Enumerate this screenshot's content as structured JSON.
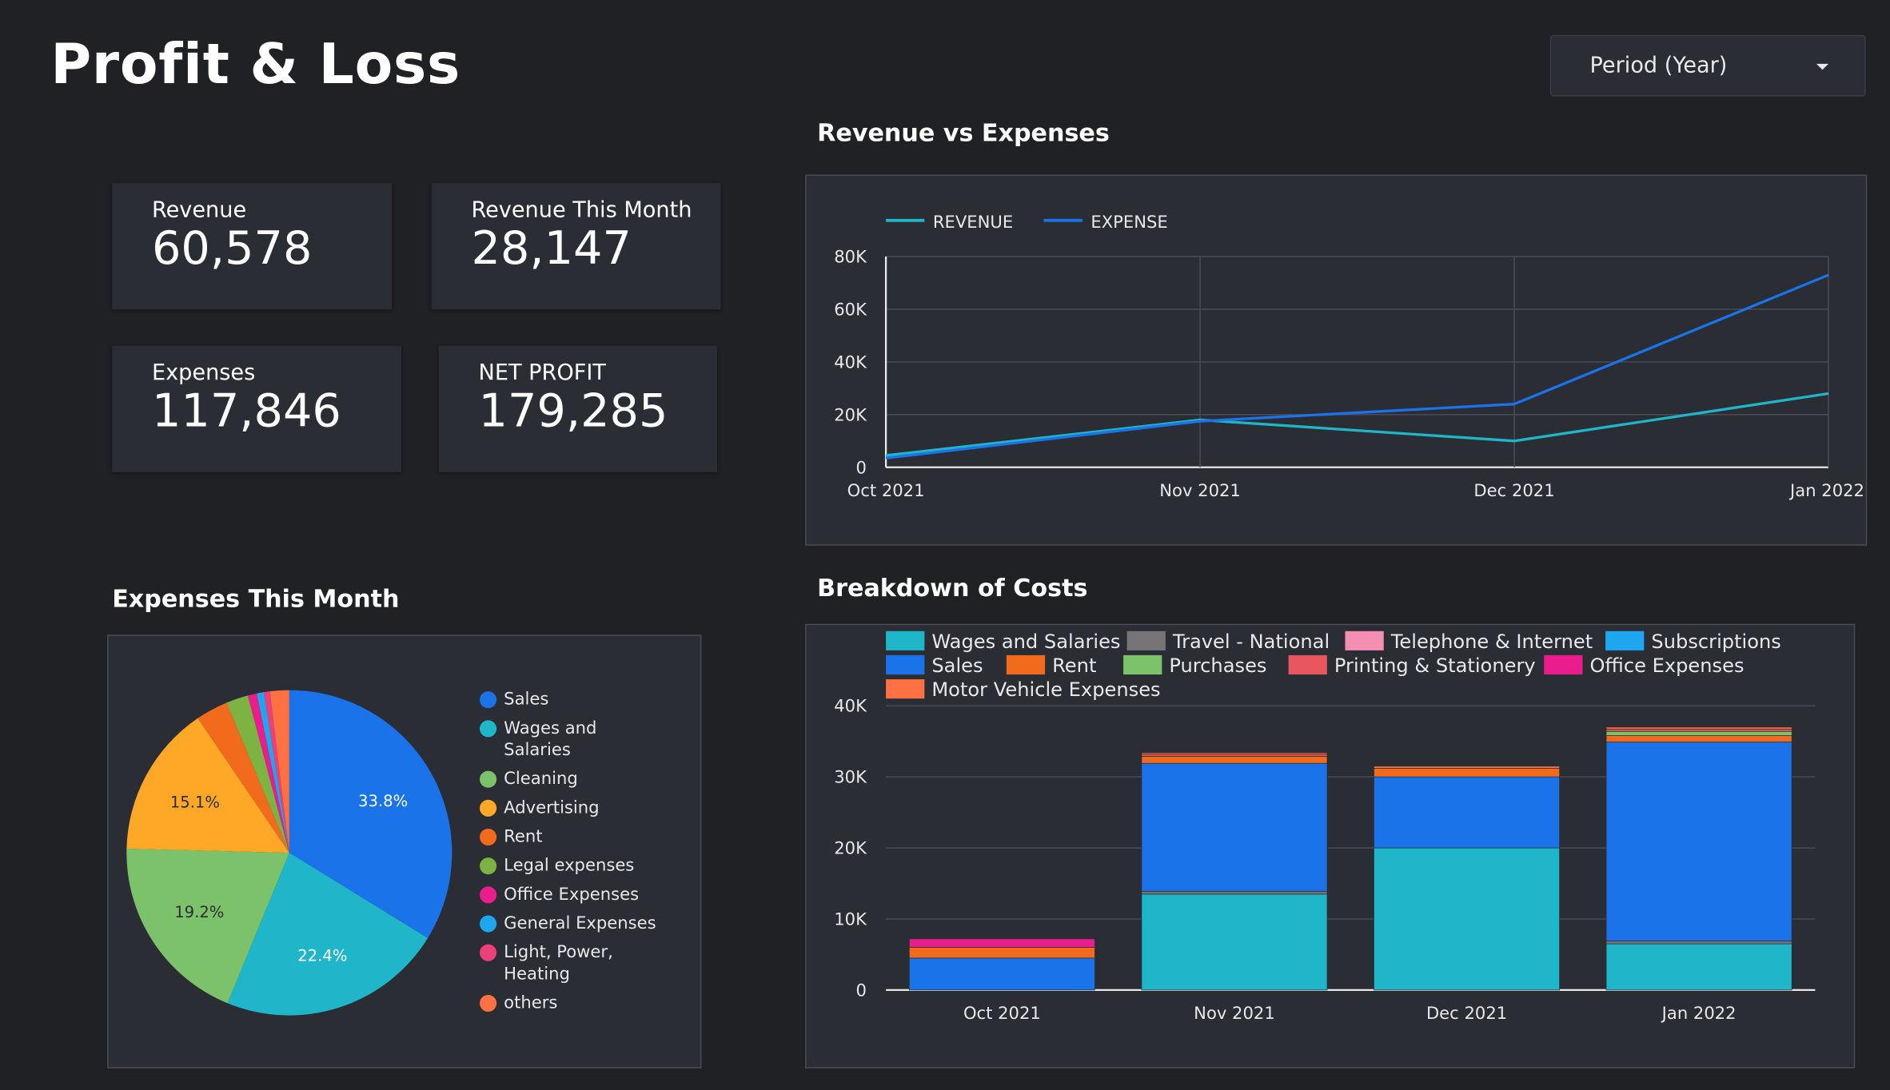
{
  "header": {
    "title": "Profit & Loss",
    "period_label": "Period (Year)"
  },
  "kpis": {
    "revenue": {
      "label": "Revenue",
      "value": "60,578"
    },
    "revenue_month": {
      "label": "Revenue This Month",
      "value": "28,147"
    },
    "expenses": {
      "label": "Expenses",
      "value": "117,846"
    },
    "net_profit": {
      "label": "NET PROFIT",
      "value": "179,285"
    }
  },
  "sections": {
    "line": "Revenue vs Expenses",
    "pie": "Expenses This Month",
    "bar": "Breakdown of Costs"
  },
  "colors": {
    "background": "#202125",
    "panel": "#2b2d35",
    "revenue_line": "#1fb6c9",
    "expense_line": "#1a73e8"
  },
  "chart_data": [
    {
      "id": "revenue_vs_expenses",
      "type": "line",
      "title": "Revenue vs Expenses",
      "categories": [
        "Oct 2021",
        "Nov 2021",
        "Dec 2021",
        "Jan 2022"
      ],
      "series": [
        {
          "name": "REVENUE",
          "color": "#1fb6c9",
          "values": [
            4500,
            18000,
            10000,
            28000
          ]
        },
        {
          "name": "EXPENSE",
          "color": "#1a73e8",
          "values": [
            3500,
            17500,
            24000,
            73000
          ]
        }
      ],
      "yticks": [
        "0",
        "20K",
        "40K",
        "60K",
        "80K"
      ],
      "ylim": [
        0,
        80000
      ],
      "legend": "top-left",
      "grid": true
    },
    {
      "id": "expenses_this_month",
      "type": "pie",
      "title": "Expenses This Month",
      "slices": [
        {
          "label": "Sales",
          "value": 33.8,
          "color": "#1a73e8",
          "pct_label": "33.8%"
        },
        {
          "label": "Wages and Salaries",
          "value": 22.4,
          "color": "#1fb6c9",
          "pct_label": "22.4%"
        },
        {
          "label": "Cleaning",
          "value": 19.2,
          "color": "#7cc26a",
          "pct_label": "19.2%"
        },
        {
          "label": "Advertising",
          "value": 15.1,
          "color": "#ffa726",
          "pct_label": "15.1%"
        },
        {
          "label": "Rent",
          "value": 3.2,
          "color": "#f26b1d",
          "pct_label": ""
        },
        {
          "label": "Legal expenses",
          "value": 2.2,
          "color": "#7cb342",
          "pct_label": ""
        },
        {
          "label": "Office Expenses",
          "value": 0.9,
          "color": "#e91e8c",
          "pct_label": ""
        },
        {
          "label": "General Expenses",
          "value": 0.7,
          "color": "#1ea7f0",
          "pct_label": ""
        },
        {
          "label": "Light, Power, Heating",
          "value": 0.6,
          "color": "#ec407a",
          "pct_label": ""
        },
        {
          "label": "others",
          "value": 1.9,
          "color": "#ff7043",
          "pct_label": ""
        }
      ],
      "legend": "right"
    },
    {
      "id": "breakdown_of_costs",
      "type": "bar",
      "stacked": true,
      "title": "Breakdown of Costs",
      "categories": [
        "Oct 2021",
        "Nov 2021",
        "Dec 2021",
        "Jan 2022"
      ],
      "series": [
        {
          "name": "Wages and Salaries",
          "color": "#1fb6c9",
          "values": [
            0,
            13500,
            20000,
            6500
          ]
        },
        {
          "name": "Travel - National",
          "color": "#757575",
          "values": [
            0,
            400,
            0,
            400
          ]
        },
        {
          "name": "Telephone & Internet",
          "color": "#f48fb1",
          "values": [
            0,
            0,
            0,
            0
          ]
        },
        {
          "name": "Subscriptions",
          "color": "#1ea7f0",
          "values": [
            0,
            0,
            0,
            0
          ]
        },
        {
          "name": "Sales",
          "color": "#1a73e8",
          "values": [
            4500,
            18000,
            10000,
            28000
          ]
        },
        {
          "name": "Rent",
          "color": "#f26b1d",
          "values": [
            1500,
            1000,
            1200,
            900
          ]
        },
        {
          "name": "Purchases",
          "color": "#7cc26a",
          "values": [
            0,
            0,
            0,
            600
          ]
        },
        {
          "name": "Printing & Stationery",
          "color": "#e8575e",
          "values": [
            0,
            300,
            0,
            300
          ]
        },
        {
          "name": "Office Expenses",
          "color": "#e91e8c",
          "values": [
            1200,
            0,
            0,
            0
          ]
        },
        {
          "name": "Motor Vehicle Expenses",
          "color": "#ff7043",
          "values": [
            0,
            200,
            300,
            300
          ]
        }
      ],
      "yticks": [
        "0",
        "10K",
        "20K",
        "30K",
        "40K"
      ],
      "ylim": [
        0,
        40000
      ],
      "legend": "top",
      "grid": true
    }
  ]
}
